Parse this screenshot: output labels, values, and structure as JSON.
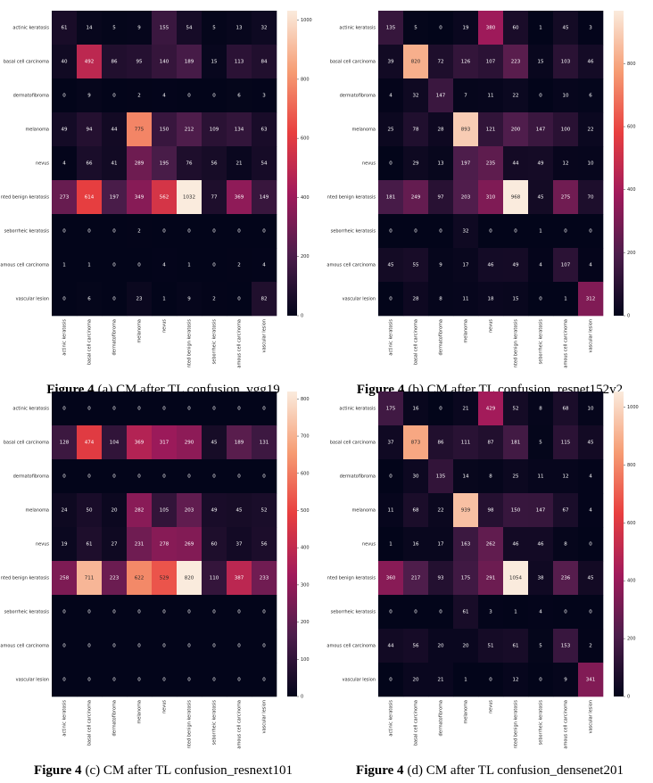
{
  "chart_data": [
    {
      "type": "heatmap",
      "caption_label": "Figure 4",
      "caption": "(a) CM after TL confusion_vgg19",
      "colormap": "rocket",
      "categories": [
        "actinic keratosis",
        "basal cell carcinoma",
        "dermatofibroma",
        "melanoma",
        "nevus",
        "nted benign keratosis",
        "seborrheic keratosis",
        "amous cell carcinoma",
        "vascular lesion"
      ],
      "values": [
        [
          61,
          14,
          5,
          9,
          155,
          54,
          5,
          13,
          32
        ],
        [
          40,
          492,
          86,
          95,
          140,
          189,
          15,
          113,
          84
        ],
        [
          0,
          9,
          0,
          2,
          4,
          0,
          0,
          6,
          3
        ],
        [
          49,
          94,
          44,
          775,
          150,
          212,
          109,
          134,
          63
        ],
        [
          4,
          66,
          41,
          289,
          195,
          76,
          56,
          21,
          54
        ],
        [
          273,
          614,
          197,
          349,
          562,
          1032,
          77,
          369,
          149
        ],
        [
          0,
          0,
          0,
          2,
          0,
          0,
          0,
          0,
          0
        ],
        [
          1,
          1,
          0,
          0,
          4,
          1,
          0,
          2,
          4
        ],
        [
          0,
          6,
          0,
          23,
          1,
          9,
          2,
          0,
          82
        ]
      ],
      "zlim": [
        0,
        1032
      ],
      "zticks": [
        0,
        200,
        400,
        600,
        800,
        1000
      ]
    },
    {
      "type": "heatmap",
      "caption_label": "Figure 4",
      "caption": "(b) CM after TL confusion_resnet152v2",
      "colormap": "rocket",
      "categories": [
        "actinic keratosis",
        "basal cell carcinoma",
        "dermatofibroma",
        "melanoma",
        "nevus",
        "nted benign keratosis",
        "seborrheic keratosis",
        "amous cell carcinoma",
        "vascular lesion"
      ],
      "values": [
        [
          135,
          5,
          0,
          19,
          380,
          60,
          1,
          45,
          3
        ],
        [
          39,
          820,
          72,
          126,
          107,
          223,
          15,
          103,
          46
        ],
        [
          4,
          32,
          147,
          7,
          11,
          22,
          0,
          10,
          6
        ],
        [
          25,
          78,
          28,
          893,
          121,
          200,
          147,
          100,
          22
        ],
        [
          0,
          29,
          13,
          197,
          235,
          44,
          49,
          12,
          10
        ],
        [
          181,
          249,
          97,
          203,
          310,
          968,
          45,
          275,
          70
        ],
        [
          0,
          0,
          0,
          32,
          0,
          0,
          1,
          0,
          0
        ],
        [
          45,
          55,
          9,
          17,
          46,
          49,
          4,
          107,
          4
        ],
        [
          0,
          28,
          8,
          11,
          18,
          15,
          0,
          1,
          312
        ]
      ],
      "zlim": [
        0,
        968
      ],
      "zticks": [
        0,
        200,
        400,
        600,
        800
      ]
    },
    {
      "type": "heatmap",
      "caption_label": "Figure 4",
      "caption": "(c) CM after TL confusion_resnext101",
      "colormap": "rocket",
      "categories": [
        "actinic keratosis",
        "basal cell carcinoma",
        "dermatofibroma",
        "melanoma",
        "nevus",
        "nted benign keratosis",
        "seborrheic keratosis",
        "amous cell carcinoma",
        "vascular lesion"
      ],
      "values": [
        [
          0,
          0,
          0,
          0,
          0,
          0,
          0,
          0,
          0
        ],
        [
          128,
          474,
          104,
          369,
          317,
          290,
          45,
          189,
          131
        ],
        [
          0,
          0,
          0,
          0,
          0,
          0,
          0,
          0,
          0
        ],
        [
          24,
          50,
          20,
          282,
          105,
          203,
          49,
          45,
          52
        ],
        [
          19,
          61,
          27,
          231,
          278,
          269,
          60,
          37,
          56
        ],
        [
          258,
          711,
          223,
          622,
          529,
          820,
          110,
          387,
          233
        ],
        [
          0,
          0,
          0,
          0,
          0,
          0,
          0,
          0,
          0
        ],
        [
          0,
          0,
          0,
          0,
          0,
          0,
          0,
          0,
          0
        ],
        [
          0,
          0,
          0,
          0,
          0,
          0,
          0,
          0,
          0
        ]
      ],
      "zlim": [
        0,
        820
      ],
      "zticks": [
        0,
        100,
        200,
        300,
        400,
        500,
        600,
        700,
        800
      ]
    },
    {
      "type": "heatmap",
      "caption_label": "Figure 4",
      "caption": "(d) CM after TL confusion_densenet201",
      "colormap": "rocket",
      "categories": [
        "actinic keratosis",
        "basal cell carcinoma",
        "dermatofibroma",
        "melanoma",
        "nevus",
        "nted benign keratosis",
        "seborrheic keratosis",
        "amous cell carcinoma",
        "vascular lesion"
      ],
      "values": [
        [
          175,
          16,
          0,
          21,
          429,
          52,
          8,
          68,
          10
        ],
        [
          37,
          873,
          86,
          111,
          87,
          181,
          5,
          115,
          45
        ],
        [
          0,
          30,
          135,
          14,
          8,
          25,
          11,
          12,
          4
        ],
        [
          11,
          68,
          22,
          939,
          98,
          150,
          147,
          67,
          4
        ],
        [
          1,
          16,
          17,
          163,
          262,
          46,
          46,
          8,
          0
        ],
        [
          360,
          217,
          93,
          175,
          291,
          1054,
          38,
          236,
          45
        ],
        [
          0,
          0,
          0,
          61,
          3,
          1,
          4,
          0,
          0
        ],
        [
          44,
          56,
          20,
          20,
          51,
          61,
          5,
          153,
          2
        ],
        [
          0,
          20,
          21,
          1,
          0,
          12,
          0,
          9,
          341
        ]
      ],
      "zlim": [
        0,
        1054
      ],
      "zticks": [
        0,
        200,
        400,
        600,
        800,
        1000
      ]
    }
  ]
}
